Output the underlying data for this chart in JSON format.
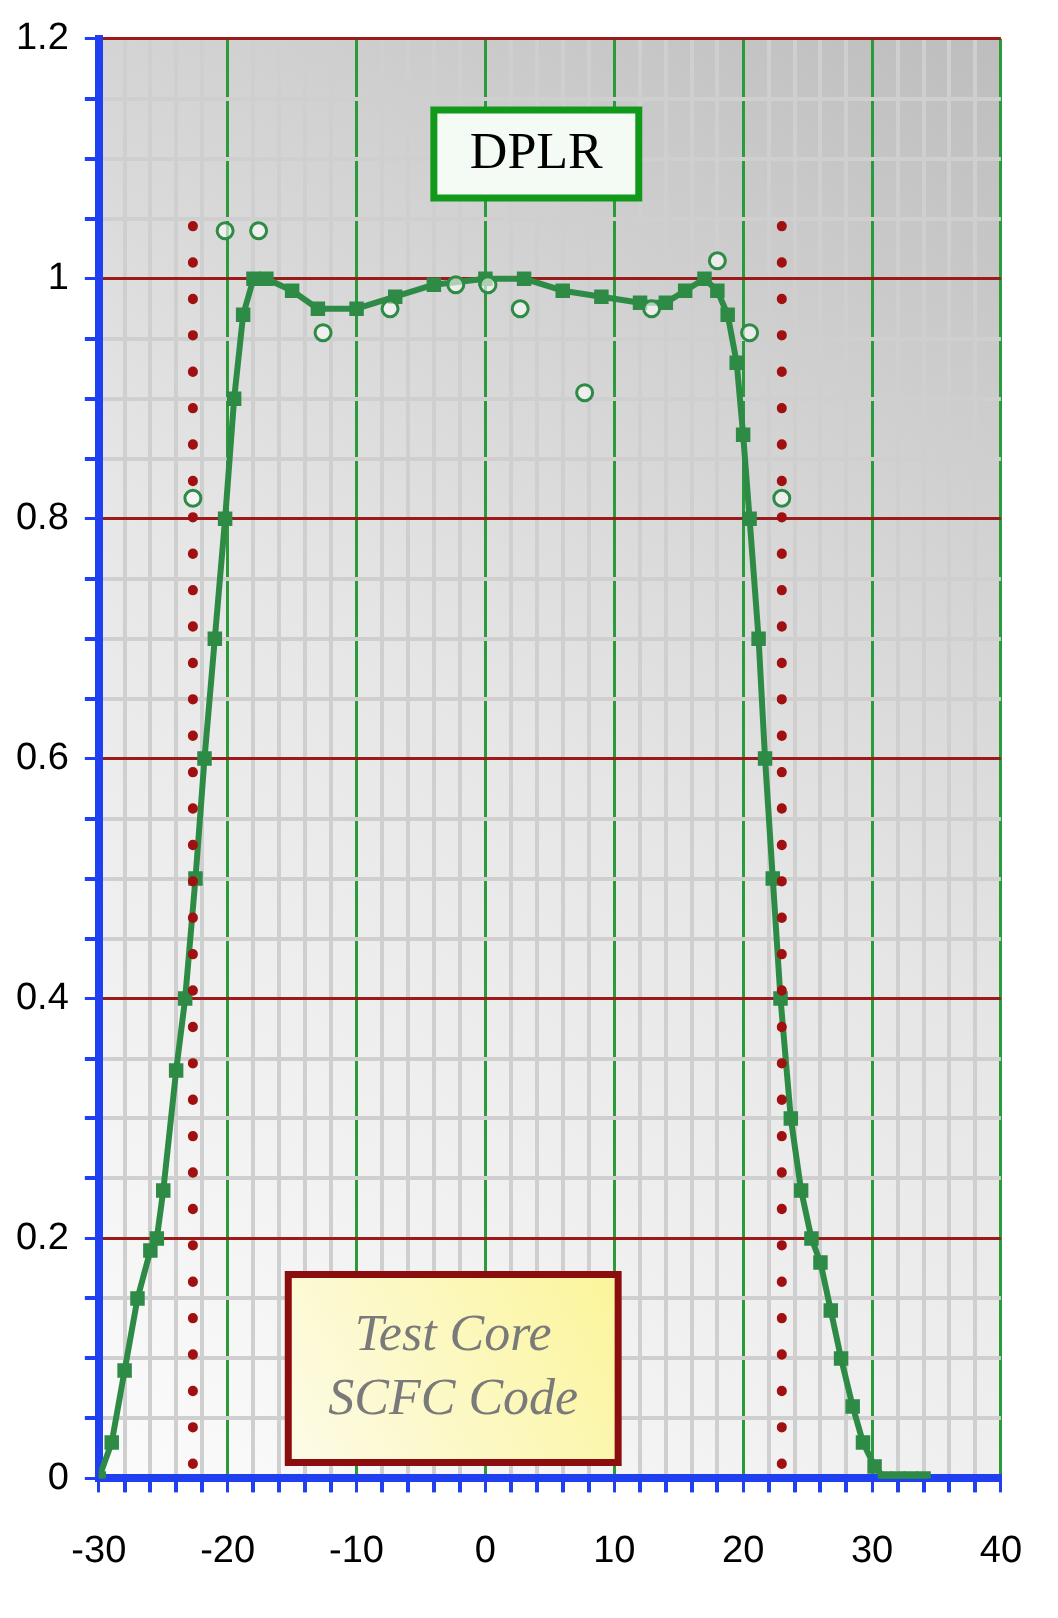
{
  "chart_data": {
    "type": "line",
    "title": "DPLR",
    "annotations": [
      "Test Core\nSCFC Code"
    ],
    "series": [
      {
        "color": "#2e8b45",
        "marker": "square",
        "x": [
          -30,
          -29,
          -28,
          -27,
          -26,
          -25.5,
          -25,
          -24,
          -23.3,
          -22.5,
          -21.8,
          -21,
          -20.2,
          -19.5,
          -18.8,
          -18,
          -17,
          -15,
          -13,
          -10,
          -7,
          -4,
          0,
          3,
          6,
          9,
          12,
          14,
          15.5,
          17,
          18,
          18.8,
          19.5,
          20,
          20.5,
          21.2,
          21.7,
          22.3,
          22.9,
          23.7,
          24.5,
          25.3,
          26,
          26.8,
          27.6,
          28.5,
          29.3,
          30.2,
          31,
          32,
          33,
          34
        ],
        "values": [
          0,
          0.03,
          0.09,
          0.15,
          0.19,
          0.2,
          0.24,
          0.34,
          0.4,
          0.5,
          0.6,
          0.7,
          0.8,
          0.9,
          0.97,
          1.0,
          1.0,
          0.99,
          0.975,
          0.975,
          0.985,
          0.995,
          1.0,
          1.0,
          0.99,
          0.985,
          0.98,
          0.98,
          0.99,
          1.0,
          0.99,
          0.97,
          0.93,
          0.87,
          0.8,
          0.7,
          0.6,
          0.5,
          0.4,
          0.3,
          0.24,
          0.2,
          0.18,
          0.14,
          0.1,
          0.06,
          0.03,
          0.01,
          0,
          0,
          0,
          0
        ]
      },
      {
        "type": "scatter",
        "color": "#2e8b45",
        "marker": "circle",
        "x": [
          -22.7,
          -20.2,
          -17.6,
          -12.6,
          -7.4,
          -2.3,
          0.2,
          2.7,
          7.7,
          12.9,
          18,
          20.5,
          23
        ],
        "values": [
          0.817,
          1.04,
          1.04,
          0.955,
          0.975,
          0.995,
          0.995,
          0.975,
          0.905,
          0.975,
          1.015,
          0.955,
          0.817
        ]
      }
    ],
    "xlim": [
      -30,
      40
    ],
    "xticks": [
      -30,
      {
        "value": -28,
        "label": null
      },
      {
        "value": -26,
        "label": null
      },
      {
        "value": -24,
        "label": null
      },
      {
        "value": -22,
        "label": null
      },
      -20,
      {
        "value": -18,
        "label": null
      },
      {
        "value": -16,
        "label": null
      },
      {
        "value": -14,
        "label": null
      },
      {
        "value": -12,
        "label": null
      },
      -10,
      {
        "value": -8,
        "label": null
      },
      {
        "value": -6,
        "label": null
      },
      {
        "value": -4,
        "label": null
      },
      {
        "value": -2,
        "label": null
      },
      0,
      {
        "value": 2,
        "label": null
      },
      {
        "value": 4,
        "label": null
      },
      {
        "value": 6,
        "label": null
      },
      {
        "value": 8,
        "label": null
      },
      10,
      {
        "value": 12,
        "label": null
      },
      {
        "value": 14,
        "label": null
      },
      {
        "value": 16,
        "label": null
      },
      {
        "value": 18,
        "label": null
      },
      20,
      {
        "value": 22,
        "label": null
      },
      {
        "value": 24,
        "label": null
      },
      {
        "value": 26,
        "label": null
      },
      {
        "value": 28,
        "label": null
      },
      30,
      {
        "value": 32,
        "label": null
      },
      {
        "value": 34,
        "label": null
      },
      {
        "value": 36,
        "label": null
      },
      {
        "value": 38,
        "label": null
      },
      40
    ],
    "ylim": [
      0,
      1.2
    ],
    "yticks": [
      0,
      {
        "value": 0.05,
        "label": null
      },
      {
        "value": 0.1,
        "label": null
      },
      {
        "value": 0.15,
        "label": null
      },
      0.2,
      {
        "value": 0.25,
        "label": null
      },
      {
        "value": 0.3,
        "label": null
      },
      {
        "value": 0.35,
        "label": null
      },
      0.4,
      {
        "value": 0.45,
        "label": null
      },
      {
        "value": 0.5,
        "label": null
      },
      {
        "value": 0.55,
        "label": null
      },
      0.6,
      {
        "value": 0.65,
        "label": null
      },
      {
        "value": 0.7,
        "label": null
      },
      {
        "value": 0.75,
        "label": null
      },
      0.8,
      {
        "value": 0.85,
        "label": null
      },
      {
        "value": 0.9,
        "label": null
      },
      {
        "value": 0.95,
        "label": null
      },
      1,
      {
        "value": 1.05,
        "label": null
      },
      {
        "value": 1.1,
        "label": null
      },
      {
        "value": 1.15,
        "label": null
      },
      1.2
    ],
    "ref_lines": [
      {
        "axis": "x",
        "value": -22.7,
        "color": "#a01010",
        "line_style": "dotted"
      },
      {
        "axis": "x",
        "value": 23,
        "color": "#a01010",
        "line_style": "dotted"
      }
    ],
    "grid": true,
    "legend": false
  }
}
